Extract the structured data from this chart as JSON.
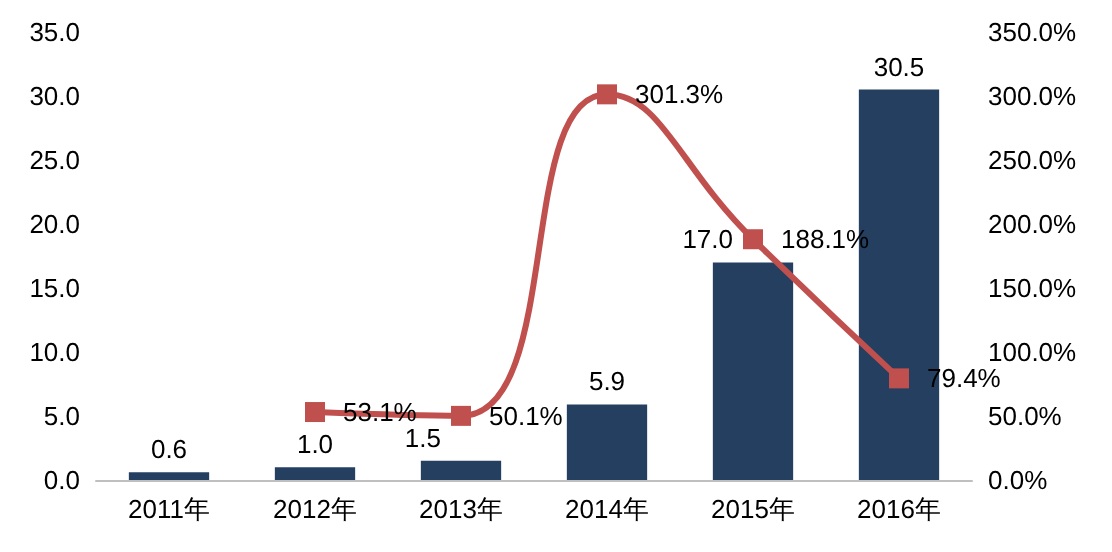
{
  "chart_data": {
    "type": "bar",
    "categories": [
      "2011年",
      "2012年",
      "2013年",
      "2014年",
      "2015年",
      "2016年"
    ],
    "series": [
      {
        "color": "#243f60",
        "values": [
          0.6,
          1.0,
          1.5,
          5.9,
          17.0,
          30.5
        ],
        "value_labels": [
          "0.6",
          "1.0",
          "1.5",
          "5.9",
          "17.0",
          "30.5"
        ]
      },
      {
        "type": "line",
        "axis": "y2",
        "color": "#c0504d",
        "marker": "square",
        "values": [
          null,
          53.1,
          50.1,
          301.3,
          188.1,
          79.4
        ],
        "value_labels": [
          null,
          "53.1%",
          "50.1%",
          "301.3%",
          "188.1%",
          "79.4%"
        ]
      }
    ],
    "ylim": [
      0,
      35
    ],
    "yticks": [
      {
        "value": 0,
        "label": "0.0"
      },
      {
        "value": 5,
        "label": "5.0"
      },
      {
        "value": 10,
        "label": "10.0"
      },
      {
        "value": 15,
        "label": "15.0"
      },
      {
        "value": 20,
        "label": "20.0"
      },
      {
        "value": 25,
        "label": "25.0"
      },
      {
        "value": 30,
        "label": "30.0"
      },
      {
        "value": 35,
        "label": "35.0"
      }
    ],
    "y2lim": [
      0,
      350
    ],
    "y2ticks": [
      {
        "value": 0,
        "label": "0.0%"
      },
      {
        "value": 50,
        "label": "50.0%"
      },
      {
        "value": 100,
        "label": "100.0%"
      },
      {
        "value": 150,
        "label": "150.0%"
      },
      {
        "value": 200,
        "label": "200.0%"
      },
      {
        "value": 250,
        "label": "250.0%"
      },
      {
        "value": 300,
        "label": "300.0%"
      },
      {
        "value": 350,
        "label": "350.0%"
      }
    ]
  }
}
